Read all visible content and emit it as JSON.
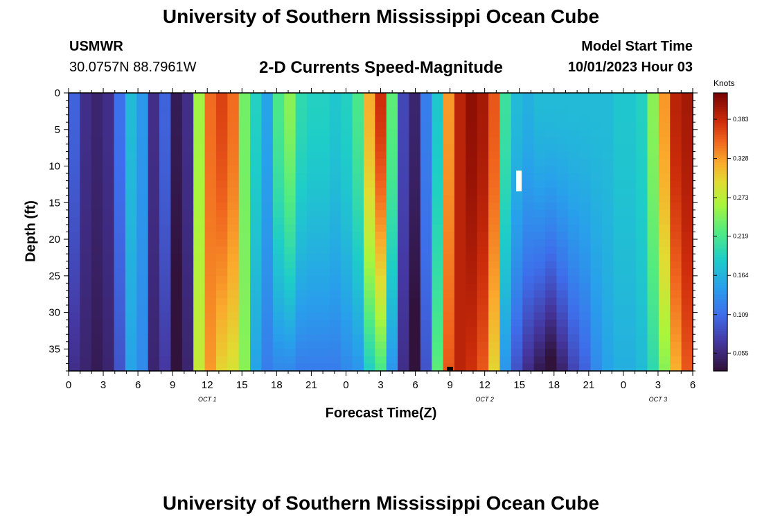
{
  "header": {
    "title": "University of Southern Mississippi Ocean Cube",
    "station": "USMWR",
    "coords": "30.0757N  88.7961W",
    "product": "2-D Currents Speed-Magnitude",
    "model_label": "Model Start Time",
    "model_time": "10/01/2023 Hour 03"
  },
  "footer": {
    "title": "University of Southern Mississippi Ocean Cube"
  },
  "chart_data": {
    "type": "heatmap",
    "title": "2-D Currents Speed-Magnitude",
    "xlabel": "Forecast Time(Z)",
    "ylabel": "Depth (ft)",
    "x_ticks": [
      "0",
      "3",
      "6",
      "9",
      "12",
      "15",
      "18",
      "21",
      "0",
      "3",
      "6",
      "9",
      "12",
      "15",
      "18",
      "21",
      "0",
      "3",
      "6"
    ],
    "x_range_hours": [
      0,
      54
    ],
    "y_ticks": [
      "0",
      "5",
      "10",
      "15",
      "20",
      "25",
      "30",
      "35"
    ],
    "y_range_ft": [
      0,
      38
    ],
    "date_labels": [
      {
        "label": "OCT 1",
        "hour": 12
      },
      {
        "label": "OCT 2",
        "hour": 36
      },
      {
        "label": "OCT 3",
        "hour": 51
      }
    ],
    "colorbar": {
      "label": "Knots",
      "ticks": [
        "0.383",
        "0.328",
        "0.273",
        "0.219",
        "0.164",
        "0.109",
        "0.055"
      ],
      "range": [
        0.03,
        0.42
      ]
    },
    "speed_profile_surface_knots": [
      0.1,
      0.06,
      0.05,
      0.06,
      0.11,
      0.17,
      0.14,
      0.06,
      0.1,
      0.04,
      0.06,
      0.26,
      0.35,
      0.37,
      0.35,
      0.24,
      0.19,
      0.15,
      0.22,
      0.25,
      0.2,
      0.19,
      0.19,
      0.18,
      0.19,
      0.22,
      0.32,
      0.38,
      0.23,
      0.08,
      0.05,
      0.12,
      0.18,
      0.33,
      0.39,
      0.41,
      0.4,
      0.36,
      0.21,
      0.17,
      0.16,
      0.17,
      0.17,
      0.17,
      0.17,
      0.17,
      0.17,
      0.17,
      0.18,
      0.18,
      0.19,
      0.25,
      0.33,
      0.39,
      0.4
    ],
    "speed_profile_bottom_knots": [
      0.06,
      0.05,
      0.04,
      0.05,
      0.09,
      0.15,
      0.13,
      0.05,
      0.07,
      0.02,
      0.05,
      0.28,
      0.33,
      0.3,
      0.29,
      0.25,
      0.15,
      0.12,
      0.13,
      0.13,
      0.12,
      0.12,
      0.12,
      0.12,
      0.13,
      0.14,
      0.19,
      0.22,
      0.14,
      0.06,
      0.02,
      0.09,
      0.23,
      0.36,
      0.39,
      0.38,
      0.36,
      0.3,
      0.14,
      0.09,
      0.06,
      0.04,
      0.02,
      0.05,
      0.08,
      0.1,
      0.13,
      0.15,
      0.16,
      0.16,
      0.17,
      0.2,
      0.25,
      0.32,
      0.36
    ]
  }
}
